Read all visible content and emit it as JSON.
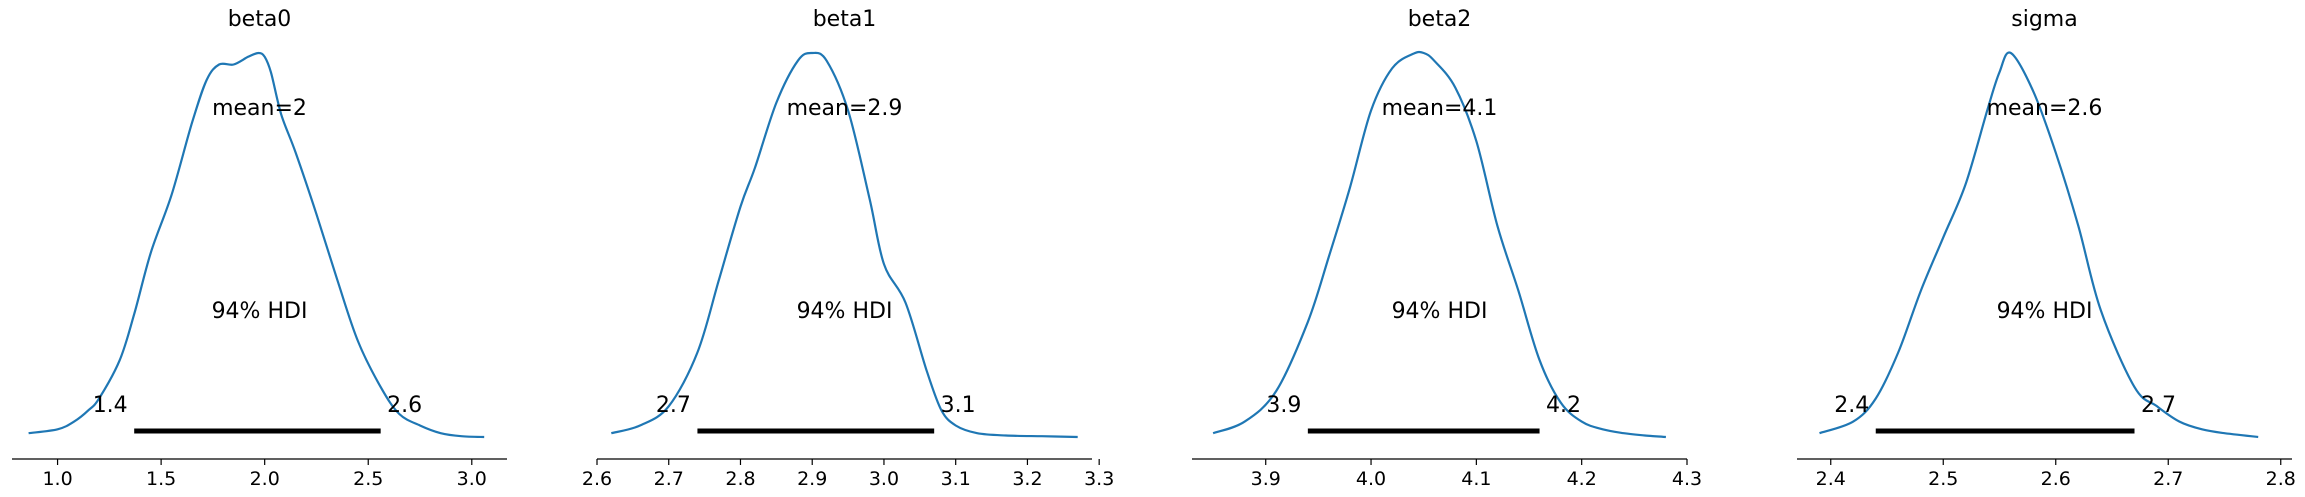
{
  "chart_data": [
    {
      "type": "area",
      "title": "beta0",
      "mean_label": "mean=2",
      "hdi_label": "94% HDI",
      "hdi": [
        1.37,
        2.56
      ],
      "hdi_low_label": "1.4",
      "hdi_high_label": "2.6",
      "xlim": [
        0.78,
        3.17
      ],
      "xticks": [
        1.0,
        1.5,
        2.0,
        2.5,
        3.0
      ],
      "xtick_labels": [
        "1.0",
        "1.5",
        "2.0",
        "2.5",
        "3.0"
      ],
      "color": "#1f77b4",
      "x": [
        0.86,
        1.0,
        1.08,
        1.15,
        1.2,
        1.3,
        1.37,
        1.45,
        1.55,
        1.65,
        1.72,
        1.78,
        1.85,
        1.92,
        1.97,
        2.0,
        2.03,
        2.08,
        2.15,
        2.25,
        2.35,
        2.45,
        2.56,
        2.65,
        2.75,
        2.85,
        2.95,
        3.06
      ],
      "y": [
        0.01,
        0.02,
        0.04,
        0.07,
        0.1,
        0.2,
        0.32,
        0.48,
        0.63,
        0.82,
        0.93,
        0.97,
        0.97,
        0.99,
        1.0,
        0.99,
        0.95,
        0.84,
        0.74,
        0.58,
        0.41,
        0.25,
        0.13,
        0.06,
        0.03,
        0.01,
        0.002,
        0.0
      ]
    },
    {
      "type": "area",
      "title": "beta1",
      "mean_label": "mean=2.9",
      "hdi_label": "94% HDI",
      "hdi": [
        2.74,
        3.07
      ],
      "hdi_low_label": "2.7",
      "hdi_high_label": "3.1",
      "xlim": [
        2.6,
        3.29
      ],
      "xticks": [
        2.6,
        2.7,
        2.8,
        2.9,
        3.0,
        3.1,
        3.2,
        3.3
      ],
      "xtick_labels": [
        "2.6",
        "2.7",
        "2.8",
        "2.9",
        "3.0",
        "3.1",
        "3.2",
        "3.3"
      ],
      "color": "#1f77b4",
      "x": [
        2.62,
        2.66,
        2.7,
        2.74,
        2.77,
        2.8,
        2.82,
        2.85,
        2.88,
        2.9,
        2.92,
        2.95,
        2.98,
        3.0,
        3.03,
        3.06,
        3.08,
        3.1,
        3.13,
        3.17,
        3.22,
        3.27
      ],
      "y": [
        0.01,
        0.03,
        0.08,
        0.22,
        0.41,
        0.6,
        0.7,
        0.87,
        0.98,
        1.0,
        0.98,
        0.85,
        0.62,
        0.45,
        0.35,
        0.17,
        0.07,
        0.03,
        0.01,
        0.004,
        0.002,
        0.0
      ]
    },
    {
      "type": "area",
      "title": "beta2",
      "mean_label": "mean=4.1",
      "hdi_label": "94% HDI",
      "hdi": [
        3.94,
        4.16
      ],
      "hdi_low_label": "3.9",
      "hdi_high_label": "4.2",
      "xlim": [
        3.83,
        4.3
      ],
      "xticks": [
        3.9,
        4.0,
        4.1,
        4.2,
        4.3
      ],
      "xtick_labels": [
        "3.9",
        "4.0",
        "4.1",
        "4.2",
        "4.3"
      ],
      "color": "#1f77b4",
      "x": [
        3.85,
        3.88,
        3.91,
        3.94,
        3.96,
        3.98,
        4.0,
        4.02,
        4.04,
        4.05,
        4.06,
        4.08,
        4.1,
        4.12,
        4.14,
        4.16,
        4.18,
        4.2,
        4.22,
        4.24,
        4.26,
        4.28
      ],
      "y": [
        0.01,
        0.04,
        0.12,
        0.3,
        0.47,
        0.65,
        0.85,
        0.96,
        0.998,
        1.0,
        0.98,
        0.91,
        0.77,
        0.55,
        0.38,
        0.2,
        0.09,
        0.04,
        0.02,
        0.01,
        0.004,
        0.0
      ]
    },
    {
      "type": "area",
      "title": "sigma",
      "mean_label": "mean=2.6",
      "hdi_label": "94% HDI",
      "hdi": [
        2.44,
        2.67
      ],
      "hdi_low_label": "2.4",
      "hdi_high_label": "2.7",
      "xlim": [
        2.37,
        2.81
      ],
      "xticks": [
        2.4,
        2.5,
        2.6,
        2.7,
        2.8
      ],
      "xtick_labels": [
        "2.4",
        "2.5",
        "2.6",
        "2.7",
        "2.8"
      ],
      "color": "#1f77b4",
      "x": [
        2.39,
        2.42,
        2.44,
        2.46,
        2.48,
        2.5,
        2.52,
        2.54,
        2.55,
        2.56,
        2.58,
        2.6,
        2.62,
        2.64,
        2.67,
        2.69,
        2.71,
        2.73,
        2.75,
        2.78
      ],
      "y": [
        0.01,
        0.04,
        0.1,
        0.22,
        0.38,
        0.52,
        0.66,
        0.86,
        0.95,
        1.0,
        0.9,
        0.74,
        0.55,
        0.33,
        0.13,
        0.08,
        0.04,
        0.02,
        0.01,
        0.0
      ]
    }
  ]
}
